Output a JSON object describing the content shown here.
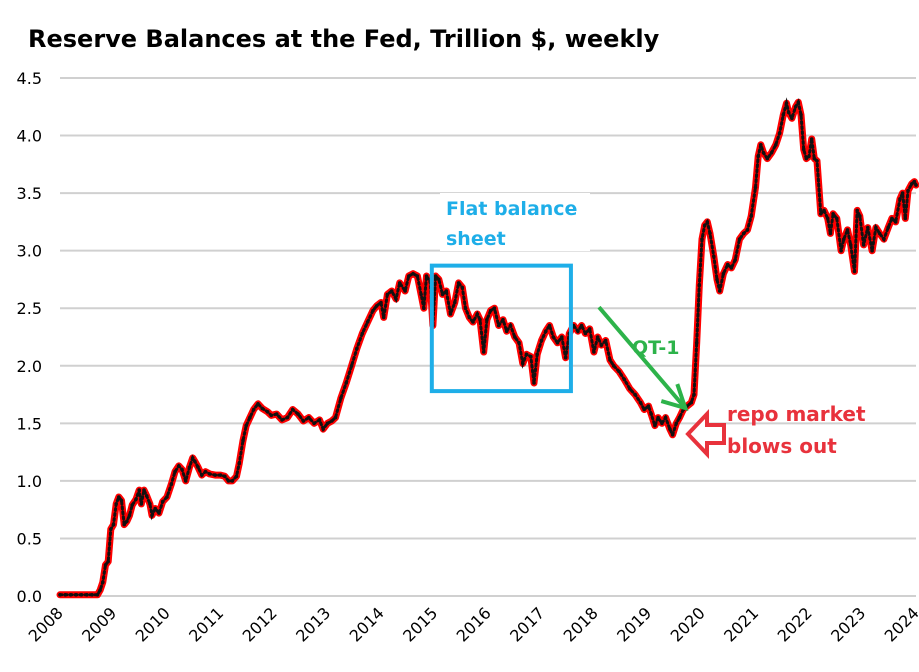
{
  "chart_data": {
    "type": "line",
    "title": "Reserve Balances at the Fed, Trillion $, weekly",
    "xlabel": "",
    "ylabel": "",
    "xlim": [
      2008,
      2024
    ],
    "ylim": [
      0,
      4.5
    ],
    "grid": true,
    "legend": "none",
    "y_ticks": [
      "0.0",
      "0.5",
      "1.0",
      "1.5",
      "2.0",
      "2.5",
      "3.0",
      "3.5",
      "4.0",
      "4.5"
    ],
    "y_tick_values": [
      0,
      0.5,
      1.0,
      1.5,
      2.0,
      2.5,
      3.0,
      3.5,
      4.0,
      4.5
    ],
    "x_ticks": [
      "2008",
      "2009",
      "2010",
      "2011",
      "2012",
      "2013",
      "2014",
      "2015",
      "2016",
      "2017",
      "2018",
      "2019",
      "2020",
      "2021",
      "2022",
      "2023",
      "2024"
    ],
    "series": [
      {
        "name": "Reserve Balances",
        "color": "#ff0000",
        "marker_color": "#111111",
        "points": [
          [
            2008.0,
            0.01
          ],
          [
            2008.1,
            0.01
          ],
          [
            2008.2,
            0.01
          ],
          [
            2008.3,
            0.01
          ],
          [
            2008.4,
            0.01
          ],
          [
            2008.5,
            0.01
          ],
          [
            2008.6,
            0.01
          ],
          [
            2008.7,
            0.01
          ],
          [
            2008.75,
            0.05
          ],
          [
            2008.8,
            0.12
          ],
          [
            2008.85,
            0.27
          ],
          [
            2008.9,
            0.3
          ],
          [
            2008.95,
            0.58
          ],
          [
            2009.0,
            0.62
          ],
          [
            2009.05,
            0.8
          ],
          [
            2009.1,
            0.86
          ],
          [
            2009.15,
            0.83
          ],
          [
            2009.2,
            0.62
          ],
          [
            2009.25,
            0.65
          ],
          [
            2009.3,
            0.7
          ],
          [
            2009.35,
            0.79
          ],
          [
            2009.42,
            0.84
          ],
          [
            2009.48,
            0.92
          ],
          [
            2009.52,
            0.8
          ],
          [
            2009.57,
            0.92
          ],
          [
            2009.62,
            0.87
          ],
          [
            2009.68,
            0.8
          ],
          [
            2009.72,
            0.7
          ],
          [
            2009.78,
            0.76
          ],
          [
            2009.85,
            0.72
          ],
          [
            2009.92,
            0.82
          ],
          [
            2010.0,
            0.86
          ],
          [
            2010.08,
            0.97
          ],
          [
            2010.15,
            1.08
          ],
          [
            2010.22,
            1.13
          ],
          [
            2010.28,
            1.1
          ],
          [
            2010.35,
            1.0
          ],
          [
            2010.42,
            1.12
          ],
          [
            2010.48,
            1.2
          ],
          [
            2010.52,
            1.17
          ],
          [
            2010.58,
            1.12
          ],
          [
            2010.65,
            1.05
          ],
          [
            2010.72,
            1.08
          ],
          [
            2010.8,
            1.06
          ],
          [
            2010.9,
            1.05
          ],
          [
            2011.0,
            1.05
          ],
          [
            2011.08,
            1.04
          ],
          [
            2011.15,
            1.0
          ],
          [
            2011.22,
            1.0
          ],
          [
            2011.3,
            1.04
          ],
          [
            2011.35,
            1.15
          ],
          [
            2011.42,
            1.35
          ],
          [
            2011.48,
            1.48
          ],
          [
            2011.55,
            1.55
          ],
          [
            2011.62,
            1.62
          ],
          [
            2011.7,
            1.67
          ],
          [
            2011.78,
            1.63
          ],
          [
            2011.88,
            1.6
          ],
          [
            2011.95,
            1.57
          ],
          [
            2012.05,
            1.58
          ],
          [
            2012.15,
            1.53
          ],
          [
            2012.25,
            1.55
          ],
          [
            2012.35,
            1.62
          ],
          [
            2012.45,
            1.58
          ],
          [
            2012.55,
            1.52
          ],
          [
            2012.65,
            1.55
          ],
          [
            2012.75,
            1.5
          ],
          [
            2012.85,
            1.53
          ],
          [
            2012.92,
            1.45
          ],
          [
            2013.0,
            1.5
          ],
          [
            2013.08,
            1.52
          ],
          [
            2013.15,
            1.55
          ],
          [
            2013.25,
            1.72
          ],
          [
            2013.35,
            1.85
          ],
          [
            2013.45,
            2.0
          ],
          [
            2013.55,
            2.15
          ],
          [
            2013.65,
            2.28
          ],
          [
            2013.75,
            2.38
          ],
          [
            2013.85,
            2.48
          ],
          [
            2013.92,
            2.52
          ],
          [
            2014.0,
            2.55
          ],
          [
            2014.05,
            2.42
          ],
          [
            2014.12,
            2.62
          ],
          [
            2014.2,
            2.65
          ],
          [
            2014.28,
            2.58
          ],
          [
            2014.35,
            2.72
          ],
          [
            2014.45,
            2.65
          ],
          [
            2014.52,
            2.78
          ],
          [
            2014.6,
            2.8
          ],
          [
            2014.68,
            2.78
          ],
          [
            2014.75,
            2.62
          ],
          [
            2014.8,
            2.5
          ],
          [
            2014.85,
            2.78
          ],
          [
            2014.92,
            2.73
          ],
          [
            2014.97,
            2.35
          ],
          [
            2015.02,
            2.78
          ],
          [
            2015.08,
            2.75
          ],
          [
            2015.15,
            2.62
          ],
          [
            2015.22,
            2.65
          ],
          [
            2015.3,
            2.45
          ],
          [
            2015.38,
            2.55
          ],
          [
            2015.45,
            2.72
          ],
          [
            2015.52,
            2.68
          ],
          [
            2015.58,
            2.5
          ],
          [
            2015.65,
            2.42
          ],
          [
            2015.72,
            2.38
          ],
          [
            2015.8,
            2.45
          ],
          [
            2015.85,
            2.4
          ],
          [
            2015.92,
            2.12
          ],
          [
            2015.98,
            2.4
          ],
          [
            2016.05,
            2.48
          ],
          [
            2016.12,
            2.5
          ],
          [
            2016.2,
            2.35
          ],
          [
            2016.28,
            2.4
          ],
          [
            2016.35,
            2.3
          ],
          [
            2016.42,
            2.35
          ],
          [
            2016.5,
            2.25
          ],
          [
            2016.58,
            2.2
          ],
          [
            2016.65,
            2.02
          ],
          [
            2016.72,
            2.1
          ],
          [
            2016.8,
            2.08
          ],
          [
            2016.86,
            1.85
          ],
          [
            2016.92,
            2.1
          ],
          [
            2017.0,
            2.22
          ],
          [
            2017.08,
            2.3
          ],
          [
            2017.15,
            2.35
          ],
          [
            2017.22,
            2.25
          ],
          [
            2017.3,
            2.2
          ],
          [
            2017.38,
            2.25
          ],
          [
            2017.45,
            2.07
          ],
          [
            2017.52,
            2.28
          ],
          [
            2017.6,
            2.35
          ],
          [
            2017.68,
            2.3
          ],
          [
            2017.75,
            2.35
          ],
          [
            2017.82,
            2.28
          ],
          [
            2017.9,
            2.32
          ],
          [
            2017.98,
            2.12
          ],
          [
            2018.05,
            2.25
          ],
          [
            2018.12,
            2.18
          ],
          [
            2018.2,
            2.22
          ],
          [
            2018.28,
            2.05
          ],
          [
            2018.35,
            2.0
          ],
          [
            2018.45,
            1.95
          ],
          [
            2018.55,
            1.88
          ],
          [
            2018.65,
            1.8
          ],
          [
            2018.75,
            1.75
          ],
          [
            2018.85,
            1.68
          ],
          [
            2018.92,
            1.62
          ],
          [
            2019.0,
            1.65
          ],
          [
            2019.05,
            1.58
          ],
          [
            2019.12,
            1.48
          ],
          [
            2019.18,
            1.55
          ],
          [
            2019.25,
            1.5
          ],
          [
            2019.32,
            1.55
          ],
          [
            2019.4,
            1.45
          ],
          [
            2019.45,
            1.4
          ],
          [
            2019.52,
            1.5
          ],
          [
            2019.58,
            1.55
          ],
          [
            2019.65,
            1.62
          ],
          [
            2019.72,
            1.65
          ],
          [
            2019.8,
            1.68
          ],
          [
            2019.85,
            1.75
          ],
          [
            2019.9,
            2.2
          ],
          [
            2019.95,
            2.7
          ],
          [
            2020.0,
            3.1
          ],
          [
            2020.05,
            3.22
          ],
          [
            2020.1,
            3.25
          ],
          [
            2020.15,
            3.15
          ],
          [
            2020.22,
            2.95
          ],
          [
            2020.28,
            2.75
          ],
          [
            2020.33,
            2.65
          ],
          [
            2020.4,
            2.8
          ],
          [
            2020.48,
            2.88
          ],
          [
            2020.55,
            2.85
          ],
          [
            2020.62,
            2.92
          ],
          [
            2020.7,
            3.1
          ],
          [
            2020.78,
            3.15
          ],
          [
            2020.85,
            3.18
          ],
          [
            2020.92,
            3.3
          ],
          [
            2021.0,
            3.55
          ],
          [
            2021.05,
            3.82
          ],
          [
            2021.1,
            3.92
          ],
          [
            2021.15,
            3.85
          ],
          [
            2021.22,
            3.8
          ],
          [
            2021.3,
            3.85
          ],
          [
            2021.38,
            3.92
          ],
          [
            2021.45,
            4.02
          ],
          [
            2021.52,
            4.18
          ],
          [
            2021.58,
            4.28
          ],
          [
            2021.62,
            4.2
          ],
          [
            2021.68,
            4.15
          ],
          [
            2021.75,
            4.25
          ],
          [
            2021.8,
            4.29
          ],
          [
            2021.85,
            4.18
          ],
          [
            2021.9,
            3.88
          ],
          [
            2021.95,
            3.8
          ],
          [
            2022.0,
            3.82
          ],
          [
            2022.05,
            3.97
          ],
          [
            2022.1,
            3.8
          ],
          [
            2022.15,
            3.78
          ],
          [
            2022.22,
            3.32
          ],
          [
            2022.28,
            3.35
          ],
          [
            2022.35,
            3.28
          ],
          [
            2022.4,
            3.15
          ],
          [
            2022.45,
            3.32
          ],
          [
            2022.52,
            3.28
          ],
          [
            2022.6,
            3.0
          ],
          [
            2022.65,
            3.1
          ],
          [
            2022.72,
            3.18
          ],
          [
            2022.78,
            3.05
          ],
          [
            2022.85,
            2.82
          ],
          [
            2022.9,
            3.35
          ],
          [
            2022.95,
            3.3
          ],
          [
            2023.02,
            3.05
          ],
          [
            2023.1,
            3.2
          ],
          [
            2023.18,
            3.0
          ],
          [
            2023.25,
            3.2
          ],
          [
            2023.32,
            3.15
          ],
          [
            2023.4,
            3.1
          ],
          [
            2023.48,
            3.2
          ],
          [
            2023.55,
            3.28
          ],
          [
            2023.62,
            3.25
          ],
          [
            2023.7,
            3.45
          ],
          [
            2023.75,
            3.5
          ],
          [
            2023.8,
            3.28
          ],
          [
            2023.85,
            3.52
          ],
          [
            2023.92,
            3.58
          ],
          [
            2023.97,
            3.6
          ],
          [
            2024.0,
            3.57
          ]
        ]
      }
    ],
    "annotations": [
      {
        "text_lines": [
          "Flat balance",
          "sheet"
        ],
        "color": "#1eaee8",
        "box_x": [
          2014.95,
          2017.55
        ],
        "box_y": [
          1.78,
          2.87
        ]
      },
      {
        "text_lines": [
          "QT-1"
        ],
        "color": "#2db34a",
        "arrow_from": [
          2018.0,
          2.5
        ],
        "arrow_to": [
          2019.8,
          1.65
        ]
      },
      {
        "text_lines": [
          "repo market",
          "blows out"
        ],
        "color": "#e8323c",
        "arrow_points_to": [
          2019.75,
          1.48
        ]
      }
    ]
  }
}
